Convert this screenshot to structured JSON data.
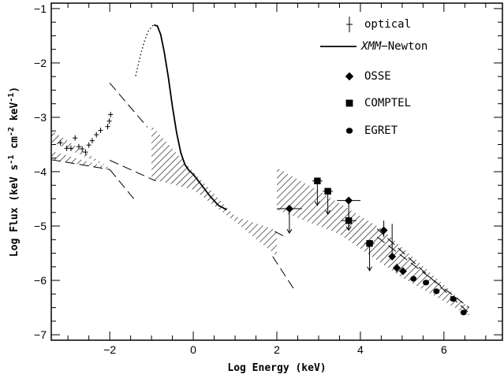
{
  "chart_data": {
    "type": "scatter",
    "xlabel": "Log Energy (keV)",
    "ylabel_parts": [
      "Log Flux (keV s",
      "-1",
      " cm",
      "-2",
      " keV",
      "-1",
      ")"
    ],
    "xlim": [
      -3.4,
      7.4
    ],
    "ylim": [
      -7.1,
      -0.9
    ],
    "x_major_ticks": [
      -2,
      0,
      2,
      4,
      6
    ],
    "x_tick_labels": [
      "−2",
      "0",
      "2",
      "4",
      "6"
    ],
    "x_minor_step": 0.5,
    "y_major_ticks": [
      -7,
      -6,
      -5,
      -4,
      -3,
      -2,
      -1
    ],
    "y_tick_labels": [
      "−7",
      "−6",
      "−5",
      "−4",
      "−3",
      "−2",
      "−1"
    ],
    "y_minor_step": 0.25,
    "legend": {
      "placement": "top-right",
      "entries": [
        {
          "marker": "cross",
          "label": "optical"
        },
        {
          "marker": "line",
          "label_italic": "XMM",
          "label_rest": "−Newton"
        },
        {
          "marker": "diamond",
          "label": "OSSE"
        },
        {
          "marker": "square",
          "label": "COMPTEL"
        },
        {
          "marker": "circle",
          "label": "EGRET"
        }
      ]
    },
    "series": [
      {
        "name": "optical",
        "marker": "cross",
        "points": [
          {
            "x": -3.18,
            "y": -3.47
          },
          {
            "x": -3.03,
            "y": -3.57
          },
          {
            "x": -2.93,
            "y": -3.57
          },
          {
            "x": -2.83,
            "y": -3.38
          },
          {
            "x": -2.74,
            "y": -3.54
          },
          {
            "x": -2.66,
            "y": -3.58
          },
          {
            "x": -2.58,
            "y": -3.64
          },
          {
            "x": -2.5,
            "y": -3.51
          },
          {
            "x": -2.42,
            "y": -3.43
          },
          {
            "x": -2.32,
            "y": -3.32
          },
          {
            "x": -2.22,
            "y": -3.24
          },
          {
            "x": -2.05,
            "y": -3.17
          },
          {
            "x": -2.01,
            "y": -3.07
          },
          {
            "x": -1.98,
            "y": -2.95
          }
        ]
      },
      {
        "name": "XMM-Newton",
        "marker": "line",
        "solid": [
          {
            "x": -0.94,
            "y": -1.3
          },
          {
            "x": -0.86,
            "y": -1.32
          },
          {
            "x": -0.78,
            "y": -1.48
          },
          {
            "x": -0.7,
            "y": -1.78
          },
          {
            "x": -0.6,
            "y": -2.25
          },
          {
            "x": -0.5,
            "y": -2.8
          },
          {
            "x": -0.4,
            "y": -3.28
          },
          {
            "x": -0.3,
            "y": -3.65
          },
          {
            "x": -0.2,
            "y": -3.87
          },
          {
            "x": -0.1,
            "y": -3.98
          },
          {
            "x": 0.0,
            "y": -4.05
          },
          {
            "x": 0.2,
            "y": -4.25
          },
          {
            "x": 0.4,
            "y": -4.45
          },
          {
            "x": 0.6,
            "y": -4.62
          },
          {
            "x": 0.8,
            "y": -4.7
          }
        ],
        "dotted": [
          {
            "x": -1.38,
            "y": -2.24
          },
          {
            "x": -1.28,
            "y": -1.9
          },
          {
            "x": -1.18,
            "y": -1.62
          },
          {
            "x": -1.08,
            "y": -1.42
          },
          {
            "x": -0.98,
            "y": -1.32
          },
          {
            "x": -0.94,
            "y": -1.3
          }
        ]
      },
      {
        "name": "OSSE",
        "marker": "diamond",
        "points": [
          {
            "x": 2.3,
            "y": -4.68,
            "xerr": [
              0.3,
              0.3
            ],
            "yerr": [
              0.45,
              0.0
            ],
            "upper_limit": true
          },
          {
            "x": 3.72,
            "y": -4.53,
            "xerr": [
              0.28,
              0.28
            ],
            "yerr": [
              0.55,
              0.0
            ],
            "upper_limit": true
          },
          {
            "x": 4.56,
            "y": -5.08,
            "xerr": [
              0.0,
              0.0
            ],
            "yerr": [
              0.12,
              0.18
            ]
          },
          {
            "x": 4.76,
            "y": -5.56,
            "xerr": [
              0.0,
              0.0
            ],
            "yerr": [
              0.07,
              0.6
            ]
          },
          {
            "x": 4.87,
            "y": -5.77,
            "xerr": [
              0.0,
              0.0
            ],
            "yerr": [
              0.08,
              0.08
            ]
          },
          {
            "x": 5.02,
            "y": -5.83,
            "xerr": [
              0.0,
              0.0
            ],
            "yerr": [
              0.06,
              0.06
            ]
          }
        ]
      },
      {
        "name": "COMPTEL",
        "marker": "square",
        "points": [
          {
            "x": 2.97,
            "y": -4.17,
            "xerr": [
              0.12,
              0.12
            ],
            "yerr": [
              0.45,
              0.0
            ],
            "upper_limit": true
          },
          {
            "x": 3.22,
            "y": -4.36,
            "xerr": [
              0.12,
              0.12
            ],
            "yerr": [
              0.42,
              0.0
            ],
            "upper_limit": true
          },
          {
            "x": 3.72,
            "y": -4.9,
            "xerr": [
              0.18,
              0.18
            ],
            "yerr": [
              0.15,
              0.15
            ]
          },
          {
            "x": 4.22,
            "y": -5.32,
            "xerr": [
              0.12,
              0.12
            ],
            "yerr": [
              0.5,
              0.0
            ],
            "upper_limit": true
          }
        ]
      },
      {
        "name": "EGRET",
        "marker": "circle",
        "points": [
          {
            "x": 5.27,
            "y": -5.97
          },
          {
            "x": 5.57,
            "y": -6.04
          },
          {
            "x": 5.82,
            "y": -6.2
          },
          {
            "x": 6.22,
            "y": -6.34
          },
          {
            "x": 6.47,
            "y": -6.59
          }
        ]
      }
    ],
    "dashed_lines": [
      {
        "from": {
          "x": -3.4,
          "y": -3.78
        },
        "to": {
          "x": -2.0,
          "y": -3.96
        }
      },
      {
        "from": {
          "x": -2.0,
          "y": -3.96
        },
        "to": {
          "x": -1.4,
          "y": -4.52
        }
      },
      {
        "from": {
          "x": -2.0,
          "y": -3.79
        },
        "to": {
          "x": -0.9,
          "y": -4.17
        }
      },
      {
        "from": {
          "x": -2.0,
          "y": -2.37
        },
        "to": {
          "x": -1.1,
          "y": -3.18
        }
      },
      {
        "from": {
          "x": 1.9,
          "y": -5.56
        },
        "to": {
          "x": 2.4,
          "y": -6.15
        }
      },
      {
        "from": {
          "x": 1.95,
          "y": -5.1
        },
        "to": {
          "x": 2.2,
          "y": -5.2
        }
      }
    ],
    "bowties": [
      {
        "name": "optical-uv bowtie",
        "polygon": [
          {
            "x": -3.4,
            "y": -3.24
          },
          {
            "x": -2.0,
            "y": -3.93
          },
          {
            "x": -2.0,
            "y": -3.96
          },
          {
            "x": -3.4,
            "y": -3.78
          },
          {
            "x": -3.4,
            "y": -3.62
          },
          {
            "x": -2.0,
            "y": -3.93
          },
          {
            "x": -3.4,
            "y": -3.45
          }
        ]
      },
      {
        "name": "xray bowtie",
        "polygon": [
          {
            "x": -1.0,
            "y": -3.15
          },
          {
            "x": 0.0,
            "y": -4.0
          },
          {
            "x": 1.0,
            "y": -4.82
          },
          {
            "x": 2.0,
            "y": -5.08
          },
          {
            "x": 2.0,
            "y": -5.55
          },
          {
            "x": 1.0,
            "y": -4.92
          },
          {
            "x": 0.0,
            "y": -4.33
          },
          {
            "x": -1.0,
            "y": -4.14
          }
        ]
      },
      {
        "name": "gamma bowtie",
        "polygon": [
          {
            "x": 2.0,
            "y": -3.93
          },
          {
            "x": 3.0,
            "y": -4.35
          },
          {
            "x": 4.5,
            "y": -5.05
          },
          {
            "x": 6.0,
            "y": -6.08
          },
          {
            "x": 6.6,
            "y": -6.5
          },
          {
            "x": 6.6,
            "y": -6.65
          },
          {
            "x": 5.0,
            "y": -5.95
          },
          {
            "x": 3.5,
            "y": -5.15
          },
          {
            "x": 2.0,
            "y": -4.7
          }
        ]
      }
    ],
    "gamma_dashed_edges": [
      {
        "from": {
          "x": 4.4,
          "y": -5.05
        },
        "to": {
          "x": 6.6,
          "y": -6.6
        }
      },
      {
        "from": {
          "x": 4.4,
          "y": -5.2
        },
        "to": {
          "x": 6.6,
          "y": -6.5
        }
      }
    ]
  }
}
